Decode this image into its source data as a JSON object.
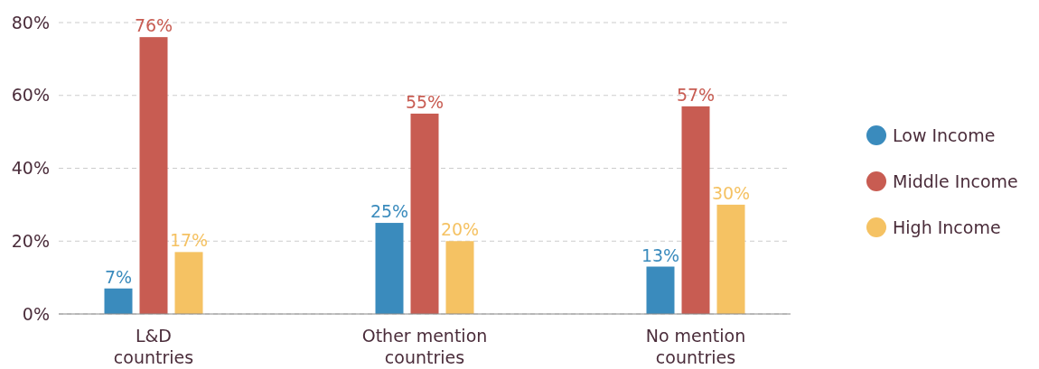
{
  "chart_data": {
    "type": "bar",
    "categories": [
      "L&D countries",
      "Other mention countries",
      "No mention countries"
    ],
    "series": [
      {
        "name": "Low Income",
        "color": "#3a8bbd",
        "values": [
          7,
          25,
          13
        ],
        "value_labels": [
          "7%",
          "25%",
          "13%"
        ]
      },
      {
        "name": "Middle Income",
        "color": "#c85c52",
        "values": [
          76,
          55,
          57
        ],
        "value_labels": [
          "76%",
          "55%",
          "57%"
        ]
      },
      {
        "name": "High Income",
        "color": "#f5c263",
        "values": [
          17,
          20,
          30
        ],
        "value_labels": [
          "17%",
          "20%",
          "30%"
        ]
      }
    ],
    "ylim": [
      0,
      80
    ],
    "yticks": [
      {
        "value": 0,
        "label": "0%"
      },
      {
        "value": 20,
        "label": "20%"
      },
      {
        "value": 40,
        "label": "40%"
      },
      {
        "value": 60,
        "label": "60%"
      },
      {
        "value": 80,
        "label": "80%"
      }
    ],
    "grid": "y",
    "legend": "right"
  }
}
